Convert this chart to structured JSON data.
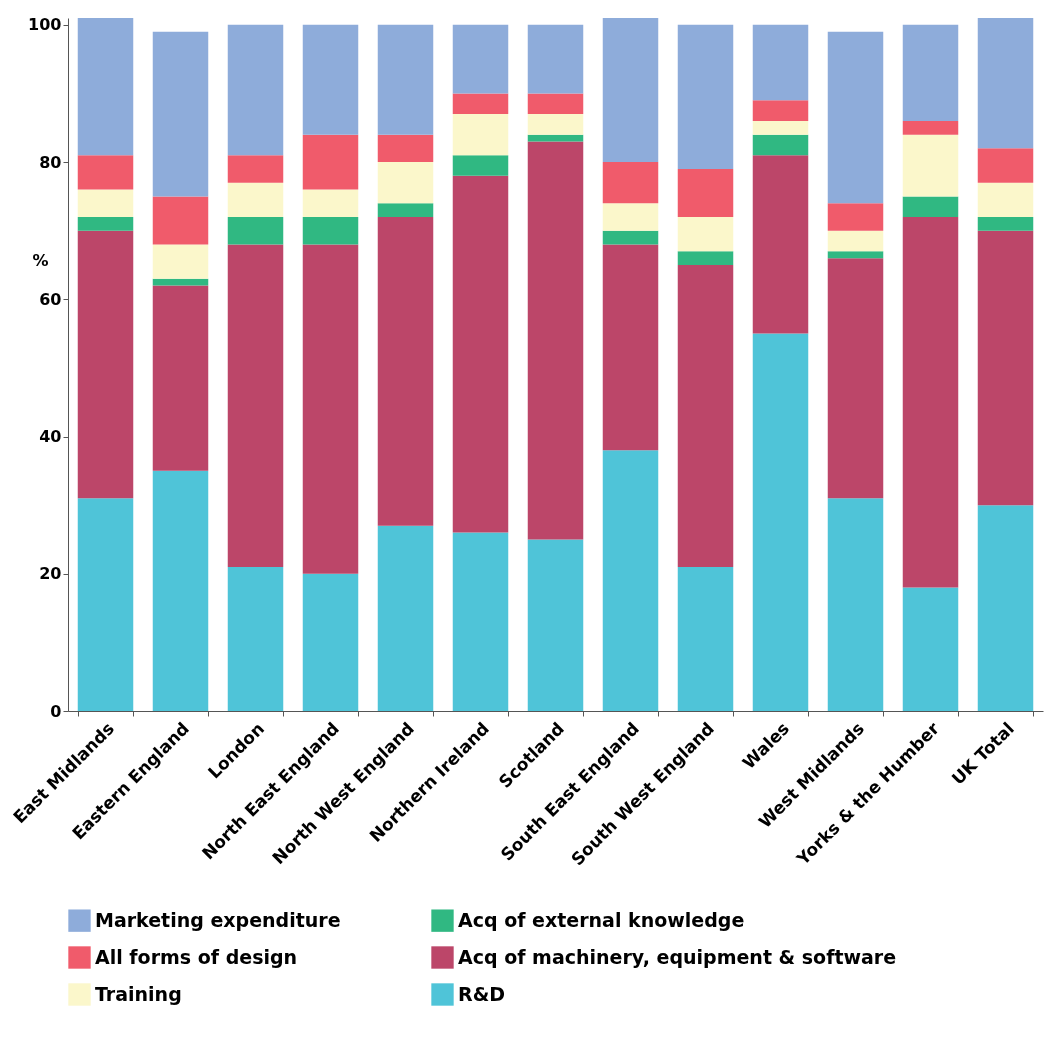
{
  "chart_data": {
    "type": "bar",
    "stacked": true,
    "ylabel": "%",
    "categories": [
      "East Midlands",
      "Eastern England",
      "London",
      "North East England",
      "North West England",
      "Northern Ireland",
      "Scotland",
      "South East England",
      "South West England",
      "Wales",
      "West Midlands",
      "Yorks & the Humber",
      "UK Total"
    ],
    "series": [
      {
        "name": "R&D",
        "color": "#4fc4d8",
        "values": [
          31,
          35,
          21,
          20,
          27,
          26,
          25,
          38,
          21,
          55,
          31,
          18,
          30
        ]
      },
      {
        "name": "Acq of machinery, equipment & software",
        "color": "#bc4669",
        "values": [
          39,
          27,
          47,
          48,
          45,
          52,
          58,
          30,
          44,
          26,
          35,
          54,
          40
        ]
      },
      {
        "name": "Acq of external knowledge",
        "color": "#30b882",
        "values": [
          2,
          1,
          4,
          4,
          2,
          3,
          1,
          2,
          2,
          3,
          1,
          3,
          2
        ]
      },
      {
        "name": "Training",
        "color": "#fbf7cb",
        "values": [
          4,
          5,
          5,
          4,
          6,
          6,
          3,
          4,
          5,
          2,
          3,
          9,
          5
        ]
      },
      {
        "name": "All forms of design",
        "color": "#f05b6b",
        "values": [
          5,
          7,
          4,
          8,
          4,
          3,
          3,
          6,
          7,
          3,
          4,
          2,
          5
        ]
      },
      {
        "name": "Marketing expenditure",
        "color": "#8eacda",
        "values": [
          20,
          24,
          19,
          16,
          16,
          10,
          10,
          21,
          21,
          11,
          25,
          14,
          19
        ]
      }
    ],
    "ylim": [
      0,
      101
    ],
    "yticks": [
      0,
      20,
      40,
      60,
      80,
      100
    ],
    "grid": false,
    "legend": "bottom"
  }
}
